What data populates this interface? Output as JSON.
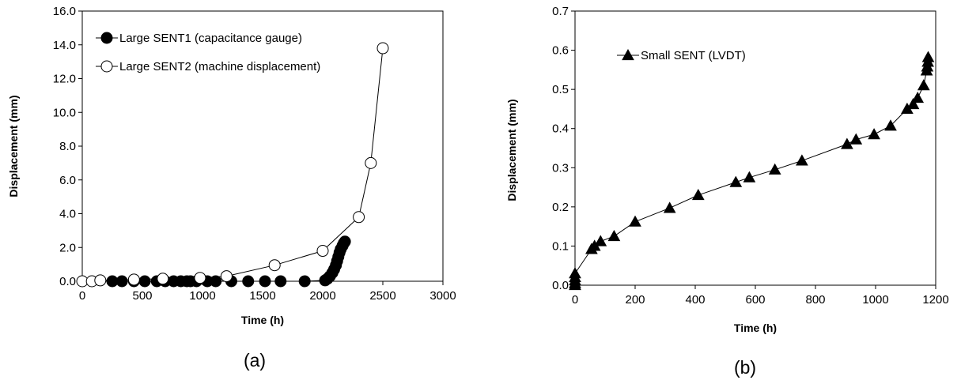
{
  "colors": {
    "axis": "#000000",
    "marker_fill": "#000000",
    "open_fill": "#ffffff",
    "line": "#000000"
  },
  "chart_data": [
    {
      "panel_label": "(a)",
      "type": "scatter",
      "title": "",
      "xlabel": "Time (h)",
      "ylabel": "Displacement (mm)",
      "xlim": [
        0,
        3000
      ],
      "ylim": [
        0,
        16
      ],
      "xticks": [
        0,
        500,
        1000,
        1500,
        2000,
        2500,
        3000
      ],
      "yticks": [
        0,
        2,
        4,
        6,
        8,
        10,
        12,
        14,
        16
      ],
      "xtick_labels": [
        "0",
        "500",
        "1000",
        "1500",
        "2000",
        "2500",
        "3000"
      ],
      "ytick_labels": [
        "0.0",
        "2.0",
        "4.0",
        "6.0",
        "8.0",
        "10.0",
        "12.0",
        "14.0",
        "16.0"
      ],
      "grid": false,
      "legend_position": "top-left",
      "series": [
        {
          "name": "Large SENT1 (capacitance gauge)",
          "marker": "filled-circle",
          "points": [
            [
              250,
              0.0
            ],
            [
              330,
              0.0
            ],
            [
              430,
              0.0
            ],
            [
              520,
              0.0
            ],
            [
              620,
              0.0
            ],
            [
              690,
              0.0
            ],
            [
              760,
              0.0
            ],
            [
              820,
              0.0
            ],
            [
              870,
              0.0
            ],
            [
              900,
              0.0
            ],
            [
              950,
              0.0
            ],
            [
              1040,
              0.0
            ],
            [
              1110,
              0.0
            ],
            [
              1240,
              0.0
            ],
            [
              1380,
              0.0
            ],
            [
              1520,
              0.0
            ],
            [
              1650,
              0.0
            ],
            [
              1850,
              0.0
            ],
            [
              2020,
              0.05
            ],
            [
              2040,
              0.15
            ],
            [
              2060,
              0.3
            ],
            [
              2080,
              0.5
            ],
            [
              2095,
              0.7
            ],
            [
              2110,
              0.95
            ],
            [
              2120,
              1.2
            ],
            [
              2130,
              1.45
            ],
            [
              2140,
              1.7
            ],
            [
              2150,
              1.9
            ],
            [
              2165,
              2.1
            ],
            [
              2175,
              2.25
            ],
            [
              2185,
              2.35
            ]
          ]
        },
        {
          "name": "Large SENT2 (machine displacement)",
          "marker": "open-circle",
          "points": [
            [
              0,
              0.0
            ],
            [
              80,
              0.0
            ],
            [
              150,
              0.05
            ],
            [
              430,
              0.1
            ],
            [
              670,
              0.15
            ],
            [
              980,
              0.2
            ],
            [
              1200,
              0.3
            ],
            [
              1600,
              0.95
            ],
            [
              2000,
              1.8
            ],
            [
              2300,
              3.8
            ],
            [
              2400,
              7.0
            ],
            [
              2500,
              13.8
            ]
          ]
        }
      ]
    },
    {
      "panel_label": "(b)",
      "type": "scatter",
      "title": "",
      "xlabel": "Time (h)",
      "ylabel": "Displacement (mm)",
      "xlim": [
        0,
        1200
      ],
      "ylim": [
        0,
        0.7
      ],
      "xticks": [
        0,
        200,
        400,
        600,
        800,
        1000,
        1200
      ],
      "yticks": [
        0,
        0.1,
        0.2,
        0.3,
        0.4,
        0.5,
        0.6,
        0.7
      ],
      "xtick_labels": [
        "0",
        "200",
        "400",
        "600",
        "800",
        "1000",
        "1200"
      ],
      "ytick_labels": [
        "0.0",
        "0.1",
        "0.2",
        "0.3",
        "0.4",
        "0.5",
        "0.6",
        "0.7"
      ],
      "grid": false,
      "legend_position": "top-left",
      "series": [
        {
          "name": "Small SENT (LVDT)",
          "marker": "filled-triangle",
          "points": [
            [
              0,
              0.0
            ],
            [
              0,
              0.005
            ],
            [
              0,
              0.012
            ],
            [
              0,
              0.02
            ],
            [
              0,
              0.03
            ],
            [
              55,
              0.092
            ],
            [
              65,
              0.1
            ],
            [
              85,
              0.112
            ],
            [
              130,
              0.125
            ],
            [
              200,
              0.162
            ],
            [
              315,
              0.197
            ],
            [
              410,
              0.23
            ],
            [
              535,
              0.263
            ],
            [
              580,
              0.275
            ],
            [
              665,
              0.295
            ],
            [
              755,
              0.318
            ],
            [
              905,
              0.36
            ],
            [
              935,
              0.372
            ],
            [
              995,
              0.385
            ],
            [
              1050,
              0.407
            ],
            [
              1105,
              0.45
            ],
            [
              1125,
              0.462
            ],
            [
              1140,
              0.478
            ],
            [
              1160,
              0.51
            ],
            [
              1170,
              0.548
            ],
            [
              1172,
              0.558
            ],
            [
              1174,
              0.57
            ],
            [
              1175,
              0.582
            ]
          ]
        }
      ]
    }
  ]
}
